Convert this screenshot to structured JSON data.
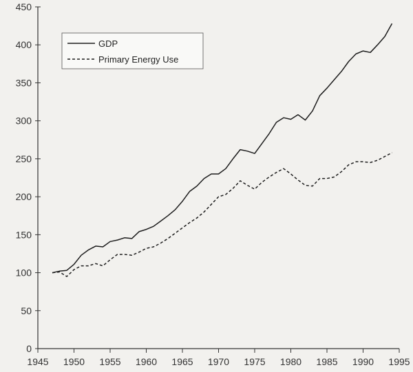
{
  "chart_data": {
    "type": "line",
    "title": "",
    "xlabel": "",
    "ylabel": "",
    "xlim": [
      1945,
      1995
    ],
    "ylim": [
      0,
      450
    ],
    "x_ticks": [
      1945,
      1950,
      1955,
      1960,
      1965,
      1970,
      1975,
      1980,
      1985,
      1990,
      1995
    ],
    "y_ticks": [
      0,
      50,
      100,
      150,
      200,
      250,
      300,
      350,
      400,
      450
    ],
    "grid": false,
    "legend_position": "top-left",
    "series": [
      {
        "name": "GDP",
        "style": "solid",
        "x": [
          1947,
          1948,
          1949,
          1950,
          1951,
          1952,
          1953,
          1954,
          1955,
          1956,
          1957,
          1958,
          1959,
          1960,
          1961,
          1962,
          1963,
          1964,
          1965,
          1966,
          1967,
          1968,
          1969,
          1970,
          1971,
          1972,
          1973,
          1974,
          1975,
          1976,
          1977,
          1978,
          1979,
          1980,
          1981,
          1982,
          1983,
          1984,
          1985,
          1986,
          1987,
          1988,
          1989,
          1990,
          1991,
          1992,
          1993,
          1994
        ],
        "values": [
          100,
          102,
          103,
          111,
          123,
          130,
          135,
          134,
          141,
          143,
          146,
          145,
          154,
          157,
          161,
          168,
          175,
          183,
          194,
          207,
          214,
          224,
          230,
          230,
          237,
          250,
          262,
          260,
          257,
          270,
          283,
          298,
          304,
          302,
          308,
          301,
          313,
          333,
          343,
          354,
          365,
          378,
          388,
          392,
          390,
          400,
          411,
          428
        ]
      },
      {
        "name": "Primary Energy Use",
        "style": "dashed",
        "x": [
          1947,
          1948,
          1949,
          1950,
          1951,
          1952,
          1953,
          1954,
          1955,
          1956,
          1957,
          1958,
          1959,
          1960,
          1961,
          1962,
          1963,
          1964,
          1965,
          1966,
          1967,
          1968,
          1969,
          1970,
          1971,
          1972,
          1973,
          1974,
          1975,
          1976,
          1977,
          1978,
          1979,
          1980,
          1981,
          1982,
          1983,
          1984,
          1985,
          1986,
          1987,
          1988,
          1989,
          1990,
          1991,
          1992,
          1993,
          1994
        ],
        "values": [
          100,
          101,
          95,
          104,
          109,
          109,
          112,
          109,
          117,
          124,
          124,
          123,
          127,
          132,
          134,
          139,
          145,
          152,
          159,
          166,
          172,
          180,
          190,
          200,
          203,
          211,
          221,
          215,
          210,
          219,
          226,
          232,
          237,
          230,
          222,
          215,
          214,
          224,
          224,
          226,
          233,
          242,
          246,
          246,
          245,
          248,
          253,
          258
        ]
      }
    ]
  },
  "colors": {
    "axis": "#333333",
    "line": "#1c1c1c",
    "background": "#f2f1ee"
  }
}
